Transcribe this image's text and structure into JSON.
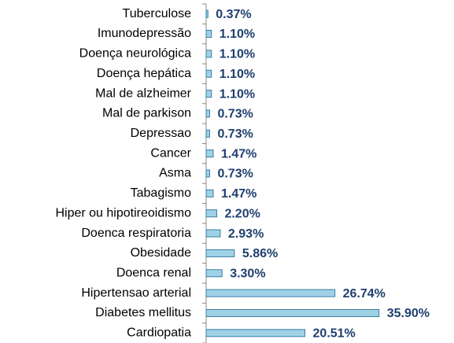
{
  "chart_data": {
    "type": "bar",
    "orientation": "horizontal",
    "categories": [
      "Tuberculose",
      "Imunodepressão",
      "Doença neurológica",
      "Doença hepática",
      "Mal de alzheimer",
      "Mal de parkison",
      "Depressao",
      "Cancer",
      "Asma",
      "Tabagismo",
      "Hiper ou hipotireoidismo",
      "Doenca respiratoria",
      "Obesidade",
      "Doenca renal",
      "Hipertensao arterial",
      "Diabetes mellitus",
      "Cardiopatia"
    ],
    "values": [
      0.37,
      1.1,
      1.1,
      1.1,
      1.1,
      0.73,
      0.73,
      1.47,
      0.73,
      1.47,
      2.2,
      2.93,
      5.86,
      3.3,
      26.74,
      35.9,
      20.51
    ],
    "value_labels": [
      "0.37%",
      "1.10%",
      "1.10%",
      "1.10%",
      "1.10%",
      "0.73%",
      "0.73%",
      "1.47%",
      "0.73%",
      "1.47%",
      "2.20%",
      "2.93%",
      "5.86%",
      "3.30%",
      "26.74%",
      "35.90%",
      "20.51%"
    ],
    "color": "#9fd2e6",
    "xlim": [
      0,
      50
    ]
  }
}
